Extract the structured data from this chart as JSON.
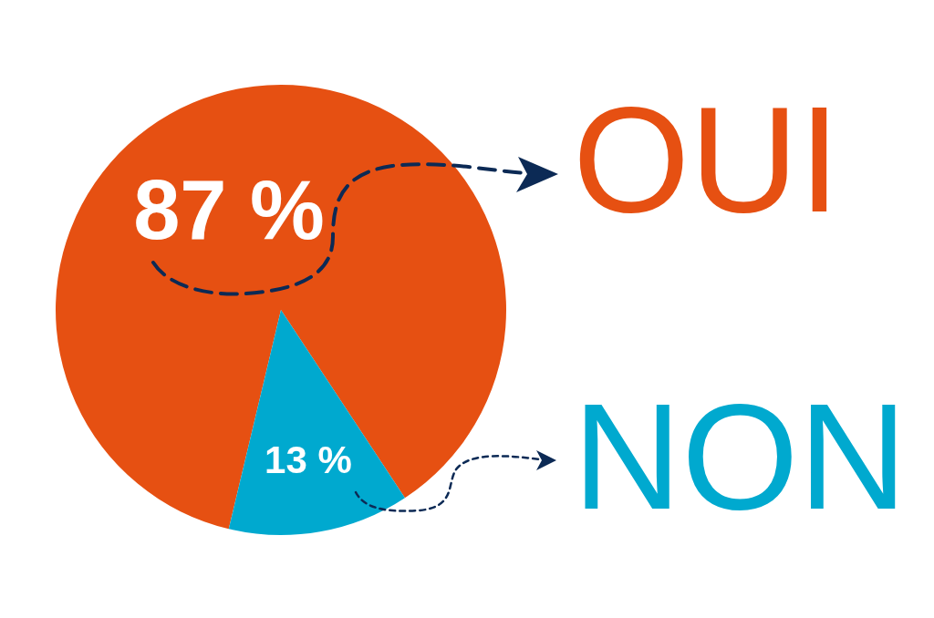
{
  "chart_data": {
    "type": "pie",
    "categories": [
      "OUI",
      "NON"
    ],
    "values": [
      87,
      13
    ],
    "colors": [
      "#e65012",
      "#00a9cf"
    ],
    "value_labels": [
      "87 %",
      "13 %"
    ]
  }
}
